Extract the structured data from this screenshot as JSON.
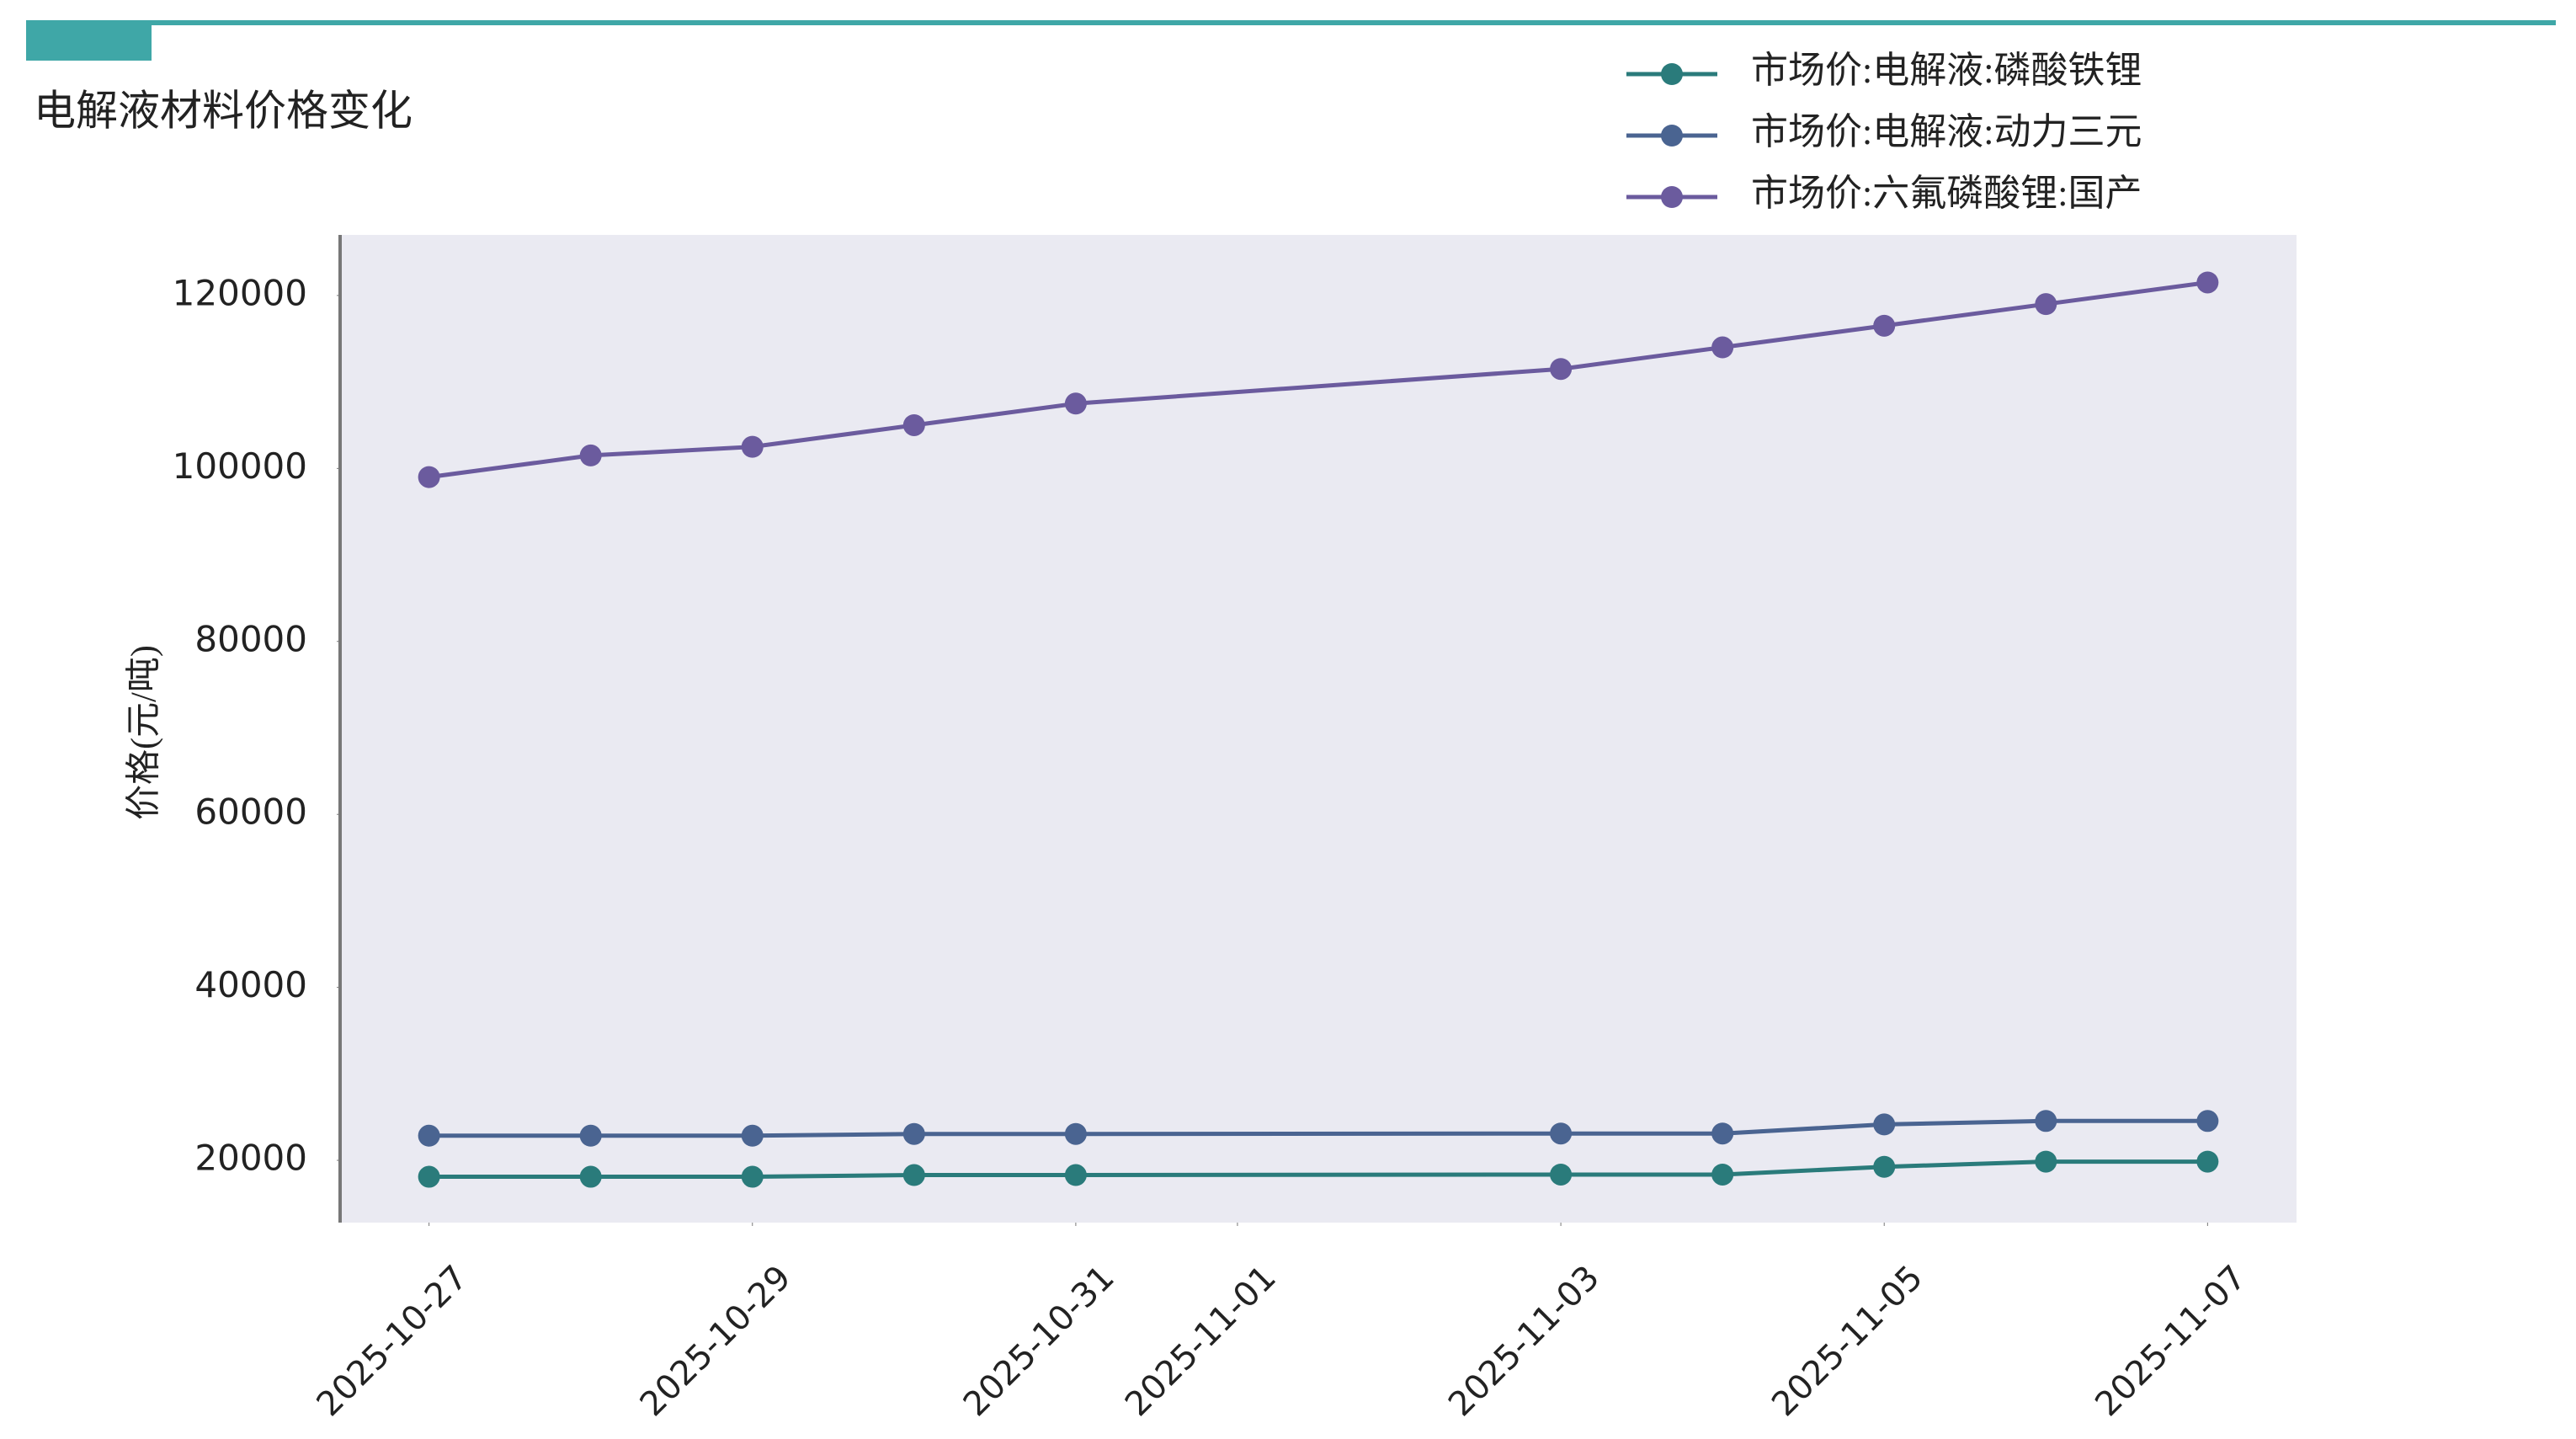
{
  "chart_data": {
    "type": "line",
    "title": "电解液材料价格变化",
    "y_label": "价格(元/吨)",
    "x": [
      "2025-10-27",
      "2025-10-28",
      "2025-10-29",
      "2025-10-30",
      "2025-10-31",
      "2025-11-03",
      "2025-11-04",
      "2025-11-05",
      "2025-11-06",
      "2025-11-07"
    ],
    "series": [
      {
        "name": "市场价:电解液:磷酸铁锂",
        "color": "#2a7b7b",
        "values": [
          18100,
          18100,
          18100,
          18300,
          18300,
          18350,
          18350,
          19250,
          19850,
          19850
        ]
      },
      {
        "name": "市场价:电解液:动力三元",
        "color": "#4a6491",
        "values": [
          22850,
          22850,
          22850,
          23050,
          23050,
          23100,
          23100,
          24150,
          24550,
          24550
        ]
      },
      {
        "name": "市场价:六氟磷酸锂:国产",
        "color": "#6b5b9e",
        "values": [
          99000,
          101500,
          102500,
          105000,
          107500,
          111500,
          114000,
          116500,
          119000,
          121500
        ]
      }
    ],
    "xlim": [
      "2025-10-26T10:48:00Z",
      "2025-11-07T13:12:00Z"
    ],
    "xticks": [
      "2025-10-27",
      "2025-10-29",
      "2025-10-31",
      "2025-11-01",
      "2025-11-03",
      "2025-11-05",
      "2025-11-07"
    ],
    "ylim": [
      12800,
      127000
    ],
    "yticks": [
      20000,
      40000,
      60000,
      80000,
      100000,
      120000
    ],
    "legend": "top-right"
  }
}
